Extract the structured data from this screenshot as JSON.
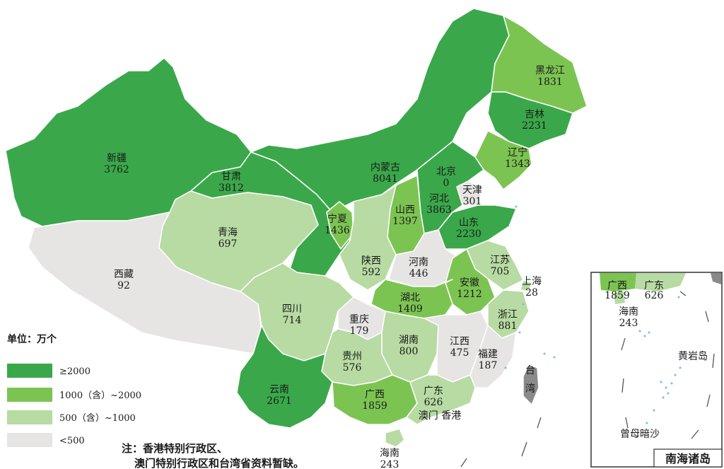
{
  "colors": {
    "c2000": "#3aa84a",
    "c1000": "#7cc452",
    "c500": "#b7dba3",
    "clt500": "#e7e4e4",
    "island": "#8a8a8a"
  },
  "legend": {
    "title": "单位：万个",
    "items": [
      {
        "color_key": "c2000",
        "label": "≥2000"
      },
      {
        "color_key": "c1000",
        "label": "1000（含）~2000"
      },
      {
        "color_key": "c500",
        "label": "500（含）~1000"
      },
      {
        "color_key": "clt500",
        "label": "<500"
      }
    ]
  },
  "note": {
    "line1": "注：香港特别行政区、",
    "line2": "澳门特别行政区和台湾省资料暂缺。"
  },
  "extra_labels": {
    "macau_hk": "澳门 香港",
    "taiwan": "台湾"
  },
  "provinces": [
    {
      "id": "xinjiang",
      "name": "新疆",
      "value": "3762"
    },
    {
      "id": "xizang",
      "name": "西藏",
      "value": "92"
    },
    {
      "id": "qinghai",
      "name": "青海",
      "value": "697"
    },
    {
      "id": "gansu",
      "name": "甘肃",
      "value": "3812"
    },
    {
      "id": "neimenggu",
      "name": "内蒙古",
      "value": "8041"
    },
    {
      "id": "heilongjiang",
      "name": "黑龙江",
      "value": "1831"
    },
    {
      "id": "jilin",
      "name": "吉林",
      "value": "2231"
    },
    {
      "id": "liaoning",
      "name": "辽宁",
      "value": "1343"
    },
    {
      "id": "beijing",
      "name": "北京",
      "value": "0"
    },
    {
      "id": "tianjin",
      "name": "天津",
      "value": "301"
    },
    {
      "id": "hebei",
      "name": "河北",
      "value": "3863"
    },
    {
      "id": "shanxi",
      "name": "山西",
      "value": "1397"
    },
    {
      "id": "shandong",
      "name": "山东",
      "value": "2230"
    },
    {
      "id": "ningxia",
      "name": "宁夏",
      "value": "1436"
    },
    {
      "id": "shaanxi",
      "name": "陕西",
      "value": "592"
    },
    {
      "id": "henan",
      "name": "河南",
      "value": "446"
    },
    {
      "id": "jiangsu",
      "name": "江苏",
      "value": "705"
    },
    {
      "id": "shanghai",
      "name": "上海",
      "value": "28"
    },
    {
      "id": "anhui",
      "name": "安徽",
      "value": "1212"
    },
    {
      "id": "hubei",
      "name": "湖北",
      "value": "1409"
    },
    {
      "id": "sichuan",
      "name": "四川",
      "value": "714"
    },
    {
      "id": "chongqing",
      "name": "重庆",
      "value": "179"
    },
    {
      "id": "zhejiang",
      "name": "浙江",
      "value": "881"
    },
    {
      "id": "hunan",
      "name": "湖南",
      "value": "800"
    },
    {
      "id": "jiangxi",
      "name": "江西",
      "value": "475"
    },
    {
      "id": "fujian",
      "name": "福建",
      "value": "187"
    },
    {
      "id": "guizhou",
      "name": "贵州",
      "value": "576"
    },
    {
      "id": "yunnan",
      "name": "云南",
      "value": "2671"
    },
    {
      "id": "guangxi",
      "name": "广西",
      "value": "1859"
    },
    {
      "id": "guangdong",
      "name": "广东",
      "value": "626"
    },
    {
      "id": "hainan",
      "name": "海南",
      "value": "243"
    }
  ],
  "inset": {
    "title": "南海诸岛",
    "labels": [
      {
        "name": "广西",
        "value": "1859"
      },
      {
        "name": "广东",
        "value": "626"
      },
      {
        "name": "海南",
        "value": "243"
      }
    ],
    "islands": [
      "黄岩岛",
      "曾母暗沙"
    ]
  }
}
